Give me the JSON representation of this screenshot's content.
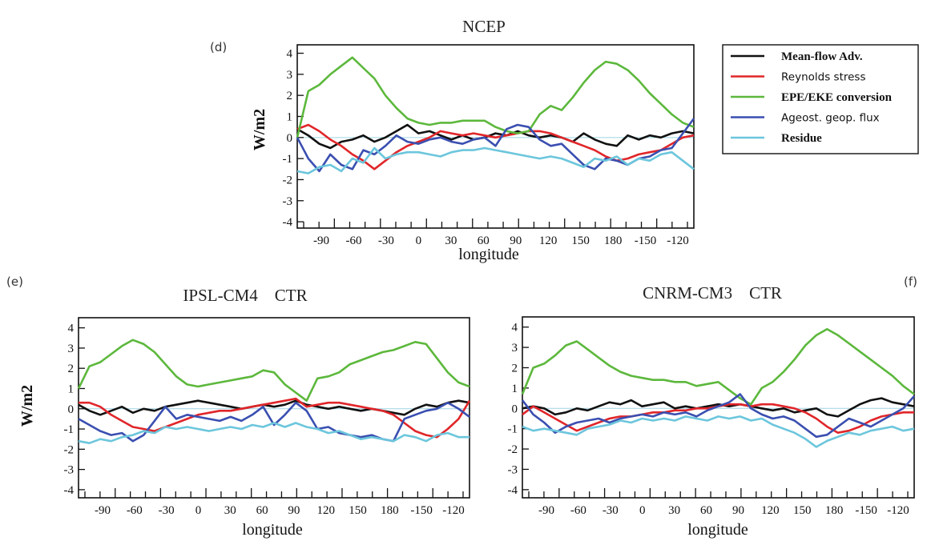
{
  "chart_data": [
    {
      "type": "line",
      "panel_tag": "(d)",
      "title": "NCEP",
      "xlabel": "longitude",
      "ylabel": "W/m2",
      "ylim": [
        -4.3,
        4.4
      ],
      "yticks": [
        "4",
        "3",
        "2",
        "1",
        "0",
        "-1",
        "-2",
        "-3",
        "-4"
      ],
      "xticks": [
        "-90",
        "-60",
        "-30",
        "0",
        "30",
        "60",
        "90",
        "120",
        "150",
        "180",
        "-150",
        "-120"
      ],
      "x": [
        "-110",
        "-100",
        "-90",
        "-80",
        "-70",
        "-60",
        "-50",
        "-40",
        "-30",
        "-20",
        "-10",
        "0",
        "10",
        "20",
        "30",
        "40",
        "50",
        "60",
        "70",
        "80",
        "90",
        "100",
        "110",
        "120",
        "130",
        "140",
        "150",
        "160",
        "170",
        "180",
        "-170",
        "-160",
        "-150",
        "-140",
        "-130",
        "-120",
        "-115"
      ],
      "series": [
        {
          "name": "Mean-flow Adv.",
          "color": "#111111",
          "values": [
            0.4,
            0.1,
            -0.3,
            -0.5,
            -0.2,
            -0.1,
            0.1,
            -0.2,
            0.0,
            0.3,
            0.6,
            0.2,
            0.3,
            0.1,
            -0.1,
            0.1,
            -0.1,
            0.0,
            0.2,
            0.1,
            0.3,
            0.1,
            0.0,
            0.1,
            0.0,
            -0.2,
            0.2,
            -0.1,
            -0.3,
            -0.4,
            0.1,
            -0.1,
            0.1,
            0.0,
            0.2,
            0.3,
            0.2
          ]
        },
        {
          "name": "Reynolds stress",
          "color": "#e0262a",
          "values": [
            0.4,
            0.6,
            0.3,
            -0.1,
            -0.4,
            -0.8,
            -1.1,
            -1.5,
            -1.1,
            -0.7,
            -0.4,
            -0.2,
            0.0,
            0.3,
            0.2,
            0.1,
            0.2,
            0.1,
            0.0,
            0.1,
            0.2,
            0.3,
            0.3,
            0.2,
            0.0,
            -0.2,
            -0.4,
            -0.6,
            -0.9,
            -1.1,
            -1.0,
            -0.8,
            -0.7,
            -0.6,
            -0.3,
            0.0,
            0.1
          ]
        },
        {
          "name": "EPE/EKE conversion",
          "color": "#5cb83c",
          "values": [
            0.0,
            2.2,
            2.5,
            3.0,
            3.4,
            3.8,
            3.3,
            2.8,
            2.0,
            1.4,
            0.9,
            0.7,
            0.6,
            0.7,
            0.7,
            0.8,
            0.8,
            0.8,
            0.5,
            0.3,
            0.2,
            0.3,
            1.1,
            1.5,
            1.3,
            1.9,
            2.6,
            3.2,
            3.6,
            3.5,
            3.2,
            2.7,
            2.1,
            1.6,
            1.1,
            0.7,
            0.5
          ]
        },
        {
          "name": "Ageost. geop. flux",
          "color": "#3a4fb0",
          "values": [
            0.0,
            -1.0,
            -1.6,
            -0.8,
            -1.3,
            -1.5,
            -0.6,
            -0.8,
            -0.4,
            0.1,
            -0.2,
            -0.3,
            -0.1,
            0.0,
            -0.2,
            -0.3,
            -0.1,
            0.0,
            -0.4,
            0.4,
            0.6,
            0.5,
            -0.1,
            -0.4,
            -0.3,
            -0.8,
            -1.3,
            -1.5,
            -1.0,
            -1.1,
            -1.3,
            -1.0,
            -0.9,
            -0.6,
            -0.5,
            0.2,
            0.9
          ]
        },
        {
          "name": "Residue",
          "color": "#6cc6dc",
          "values": [
            -1.6,
            -1.7,
            -1.4,
            -1.3,
            -1.6,
            -1.0,
            -1.2,
            -0.5,
            -1.0,
            -0.8,
            -0.7,
            -0.7,
            -0.8,
            -0.9,
            -0.7,
            -0.6,
            -0.6,
            -0.5,
            -0.6,
            -0.7,
            -0.8,
            -0.9,
            -1.0,
            -0.9,
            -1.0,
            -1.2,
            -1.4,
            -1.0,
            -1.1,
            -0.9,
            -1.3,
            -1.0,
            -1.1,
            -0.8,
            -0.7,
            -1.1,
            -1.5
          ]
        }
      ]
    },
    {
      "type": "line",
      "panel_tag": "(e)",
      "title": "IPSL-CM4    CTR",
      "xlabel": "longitude",
      "ylabel": "W/m2",
      "ylim": [
        -4.4,
        4.5
      ],
      "yticks": [
        "4",
        "3",
        "2",
        "1",
        "0",
        "-1",
        "-2",
        "-3",
        "-4"
      ],
      "xticks": [
        "-90",
        "-60",
        "-30",
        "0",
        "30",
        "60",
        "90",
        "120",
        "150",
        "180",
        "-150",
        "-120"
      ],
      "x": [
        "-110",
        "-100",
        "-90",
        "-80",
        "-70",
        "-60",
        "-50",
        "-40",
        "-30",
        "-20",
        "-10",
        "0",
        "10",
        "20",
        "30",
        "40",
        "50",
        "60",
        "70",
        "80",
        "90",
        "100",
        "110",
        "120",
        "130",
        "140",
        "150",
        "160",
        "170",
        "180",
        "-170",
        "-160",
        "-150",
        "-140",
        "-130",
        "-120",
        "-115"
      ],
      "series": [
        {
          "name": "Mean-flow Adv.",
          "color": "#111111",
          "values": [
            0.2,
            -0.1,
            -0.3,
            -0.1,
            0.1,
            -0.2,
            0.0,
            -0.1,
            0.1,
            0.2,
            0.3,
            0.4,
            0.3,
            0.2,
            0.1,
            0.0,
            0.1,
            0.2,
            0.1,
            0.2,
            0.4,
            0.2,
            0.1,
            0.0,
            0.1,
            0.0,
            -0.1,
            0.0,
            -0.1,
            -0.2,
            -0.3,
            0.0,
            0.2,
            0.1,
            0.3,
            0.4,
            0.3
          ]
        },
        {
          "name": "Reynolds stress",
          "color": "#e0262a",
          "values": [
            0.3,
            0.3,
            0.1,
            -0.3,
            -0.6,
            -0.9,
            -1.0,
            -1.1,
            -0.9,
            -0.7,
            -0.5,
            -0.3,
            -0.2,
            -0.1,
            -0.1,
            0.0,
            0.1,
            0.2,
            0.3,
            0.4,
            0.5,
            0.1,
            0.2,
            0.3,
            0.3,
            0.2,
            0.1,
            0.0,
            -0.1,
            -0.3,
            -0.7,
            -1.1,
            -1.3,
            -1.4,
            -1.0,
            -0.5,
            0.4
          ]
        },
        {
          "name": "EPE/EKE conversion",
          "color": "#5cb83c",
          "values": [
            1.0,
            2.1,
            2.3,
            2.7,
            3.1,
            3.4,
            3.2,
            2.8,
            2.2,
            1.6,
            1.2,
            1.1,
            1.2,
            1.3,
            1.4,
            1.5,
            1.6,
            1.9,
            1.8,
            1.2,
            0.8,
            0.4,
            1.5,
            1.6,
            1.8,
            2.2,
            2.4,
            2.6,
            2.8,
            2.9,
            3.1,
            3.3,
            3.2,
            2.5,
            1.8,
            1.3,
            1.1
          ]
        },
        {
          "name": "Ageost. geop. flux",
          "color": "#3a4fb0",
          "values": [
            -0.5,
            -0.8,
            -1.1,
            -1.3,
            -1.2,
            -1.6,
            -1.3,
            -0.6,
            0.1,
            -0.5,
            -0.3,
            -0.4,
            -0.5,
            -0.6,
            -0.4,
            -0.6,
            -0.3,
            0.1,
            -0.8,
            -0.3,
            0.3,
            -0.1,
            -1.0,
            -0.9,
            -1.2,
            -1.3,
            -1.4,
            -1.3,
            -1.5,
            -1.6,
            -0.5,
            -0.3,
            -0.1,
            0.0,
            0.3,
            0.0,
            -0.4
          ]
        },
        {
          "name": "Residue",
          "color": "#6cc6dc",
          "values": [
            -1.6,
            -1.7,
            -1.5,
            -1.6,
            -1.4,
            -1.3,
            -1.1,
            -1.2,
            -0.9,
            -1.0,
            -0.9,
            -1.0,
            -1.1,
            -1.0,
            -0.9,
            -1.0,
            -0.8,
            -0.9,
            -0.7,
            -0.9,
            -0.7,
            -0.9,
            -1.0,
            -1.2,
            -1.1,
            -1.3,
            -1.5,
            -1.4,
            -1.5,
            -1.6,
            -1.3,
            -1.4,
            -1.6,
            -1.3,
            -1.2,
            -1.4,
            -1.4
          ]
        }
      ]
    },
    {
      "type": "line",
      "panel_tag": "(f)",
      "title": "CNRM-CM3    CTR",
      "xlabel": "longitude",
      "ylabel": "",
      "ylim": [
        -4.4,
        4.5
      ],
      "yticks": [
        "4",
        "3",
        "2",
        "1",
        "0",
        "-1",
        "-2",
        "-3",
        "-4"
      ],
      "xticks": [
        "-90",
        "-60",
        "-30",
        "0",
        "30",
        "60",
        "90",
        "120",
        "150",
        "180",
        "-150",
        "-120"
      ],
      "x": [
        "-110",
        "-100",
        "-90",
        "-80",
        "-70",
        "-60",
        "-50",
        "-40",
        "-30",
        "-20",
        "-10",
        "0",
        "10",
        "20",
        "30",
        "40",
        "50",
        "60",
        "70",
        "80",
        "90",
        "100",
        "110",
        "120",
        "130",
        "140",
        "150",
        "160",
        "170",
        "180",
        "-170",
        "-160",
        "-150",
        "-140",
        "-130",
        "-120",
        "-115"
      ],
      "series": [
        {
          "name": "Mean-flow Adv.",
          "color": "#111111",
          "values": [
            0.0,
            0.1,
            0.0,
            -0.3,
            -0.2,
            0.0,
            -0.1,
            0.1,
            0.3,
            0.2,
            0.4,
            0.1,
            0.2,
            0.3,
            0.0,
            0.1,
            0.0,
            0.1,
            0.2,
            0.1,
            0.2,
            0.1,
            0.0,
            -0.1,
            0.0,
            -0.2,
            -0.1,
            0.0,
            -0.3,
            -0.4,
            -0.1,
            0.2,
            0.4,
            0.5,
            0.3,
            0.2,
            0.1
          ]
        },
        {
          "name": "Reynolds stress",
          "color": "#e0262a",
          "values": [
            -0.3,
            0.1,
            -0.2,
            -0.5,
            -0.8,
            -1.1,
            -0.9,
            -0.7,
            -0.5,
            -0.4,
            -0.4,
            -0.3,
            -0.2,
            -0.2,
            -0.1,
            -0.1,
            0.0,
            0.0,
            0.1,
            0.2,
            0.2,
            0.1,
            0.2,
            0.2,
            0.1,
            0.0,
            -0.2,
            -0.5,
            -0.9,
            -1.2,
            -1.1,
            -0.9,
            -0.6,
            -0.4,
            -0.3,
            -0.2,
            -0.2
          ]
        },
        {
          "name": "EPE/EKE conversion",
          "color": "#5cb83c",
          "values": [
            0.7,
            2.0,
            2.2,
            2.6,
            3.1,
            3.3,
            2.9,
            2.5,
            2.1,
            1.8,
            1.6,
            1.5,
            1.4,
            1.4,
            1.3,
            1.3,
            1.1,
            1.2,
            1.3,
            0.9,
            0.5,
            0.2,
            1.0,
            1.3,
            1.8,
            2.4,
            3.1,
            3.6,
            3.9,
            3.6,
            3.2,
            2.8,
            2.4,
            2.0,
            1.6,
            1.1,
            0.7
          ]
        },
        {
          "name": "Ageost. geop. flux",
          "color": "#3a4fb0",
          "values": [
            0.4,
            -0.3,
            -0.7,
            -1.2,
            -0.9,
            -0.7,
            -0.6,
            -0.5,
            -0.7,
            -0.5,
            -0.4,
            -0.3,
            -0.4,
            -0.2,
            -0.3,
            -0.2,
            -0.4,
            -0.1,
            0.1,
            0.3,
            0.7,
            0.0,
            -0.3,
            -0.5,
            -0.4,
            -0.6,
            -1.0,
            -1.4,
            -1.3,
            -0.9,
            -0.5,
            -0.7,
            -0.9,
            -0.6,
            -0.3,
            0.0,
            0.6
          ]
        },
        {
          "name": "Residue",
          "color": "#6cc6dc",
          "values": [
            -0.9,
            -1.1,
            -1.0,
            -1.1,
            -1.2,
            -1.3,
            -1.0,
            -0.9,
            -0.8,
            -0.6,
            -0.7,
            -0.5,
            -0.6,
            -0.5,
            -0.6,
            -0.4,
            -0.5,
            -0.6,
            -0.4,
            -0.5,
            -0.4,
            -0.6,
            -0.5,
            -0.8,
            -1.0,
            -1.2,
            -1.5,
            -1.9,
            -1.6,
            -1.4,
            -1.2,
            -1.3,
            -1.1,
            -1.0,
            -0.9,
            -1.1,
            -1.0
          ]
        }
      ]
    }
  ],
  "legend": {
    "placement": "right of panel (d)",
    "entries": [
      {
        "label": "Mean-flow Adv.",
        "color": "#111111",
        "style": "serif-bold"
      },
      {
        "label": "Reynolds stress",
        "color": "#e0262a",
        "style": "sans"
      },
      {
        "label": "EPE/EKE conversion",
        "color": "#5cb83c",
        "style": "serif-bold"
      },
      {
        "label": "Ageost. geop. flux",
        "color": "#3a4fb0",
        "style": "sans"
      },
      {
        "label": "Residue",
        "color": "#6cc6dc",
        "style": "serif-bold"
      }
    ]
  }
}
